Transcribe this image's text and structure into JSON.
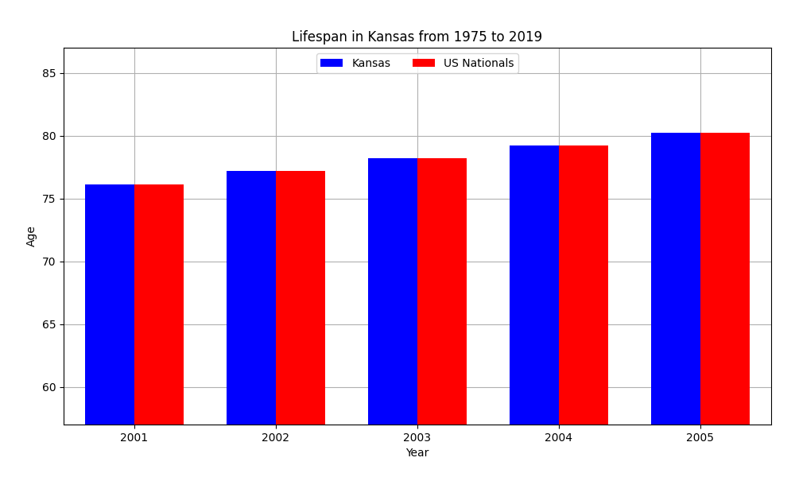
{
  "chart_data": {
    "type": "bar",
    "title": "Lifespan in Kansas from 1975 to 2019",
    "x_label": "Year",
    "y_label": "Age",
    "categories": [
      "2001",
      "2002",
      "2003",
      "2004",
      "2005"
    ],
    "series": [
      {
        "name": "Kansas",
        "color": "#0000ff",
        "values": [
          76.1,
          77.2,
          78.2,
          79.2,
          80.2
        ]
      },
      {
        "name": "US Nationals",
        "color": "#ff0000",
        "values": [
          76.1,
          77.2,
          78.2,
          79.2,
          80.2
        ]
      }
    ],
    "ylim": [
      57,
      87
    ],
    "yticks": [
      60,
      65,
      70,
      75,
      80,
      85
    ],
    "grid": true,
    "legend": "upper center"
  }
}
